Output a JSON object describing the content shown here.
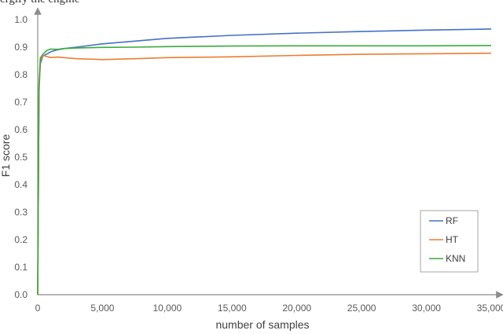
{
  "header_fragment": "ergify the engine",
  "chart_data": {
    "type": "line",
    "xlabel": "number of samples",
    "ylabel": "F1 score",
    "xlim": [
      0,
      35000
    ],
    "ylim": [
      0,
      1.0
    ],
    "x_ticks": [
      "0",
      "5,000",
      "10,000",
      "15,000",
      "20,000",
      "25,000",
      "30,000",
      "35,000"
    ],
    "y_ticks": [
      "0.0",
      "0.1",
      "0.2",
      "0.3",
      "0.4",
      "0.5",
      "0.6",
      "0.7",
      "0.8",
      "0.9",
      "1.0"
    ],
    "grid": false,
    "legend_position": "bottom-right",
    "series": [
      {
        "name": "RF",
        "color": "#4472C4",
        "x": [
          0,
          100,
          200,
          400,
          700,
          1000,
          1500,
          2000,
          3000,
          5000,
          7500,
          10000,
          15000,
          20000,
          25000,
          30000,
          35000
        ],
        "y": [
          0.0,
          0.75,
          0.84,
          0.868,
          0.875,
          0.883,
          0.89,
          0.895,
          0.9,
          0.912,
          0.922,
          0.932,
          0.943,
          0.951,
          0.957,
          0.962,
          0.966
        ]
      },
      {
        "name": "HT",
        "color": "#ED7D31",
        "x": [
          0,
          100,
          200,
          400,
          700,
          1000,
          1500,
          2000,
          3000,
          5000,
          7500,
          10000,
          15000,
          20000,
          25000,
          30000,
          35000
        ],
        "y": [
          0.0,
          0.73,
          0.85,
          0.87,
          0.866,
          0.862,
          0.864,
          0.862,
          0.858,
          0.855,
          0.858,
          0.862,
          0.865,
          0.87,
          0.874,
          0.876,
          0.878
        ]
      },
      {
        "name": "KNN",
        "color": "#3BAA3B",
        "x": [
          0,
          100,
          200,
          400,
          700,
          1000,
          1500,
          2000,
          3000,
          5000,
          7500,
          10000,
          15000,
          20000,
          25000,
          30000,
          35000
        ],
        "y": [
          0.0,
          0.76,
          0.86,
          0.874,
          0.888,
          0.893,
          0.892,
          0.895,
          0.897,
          0.899,
          0.9,
          0.902,
          0.904,
          0.905,
          0.905,
          0.905,
          0.906
        ]
      }
    ]
  }
}
